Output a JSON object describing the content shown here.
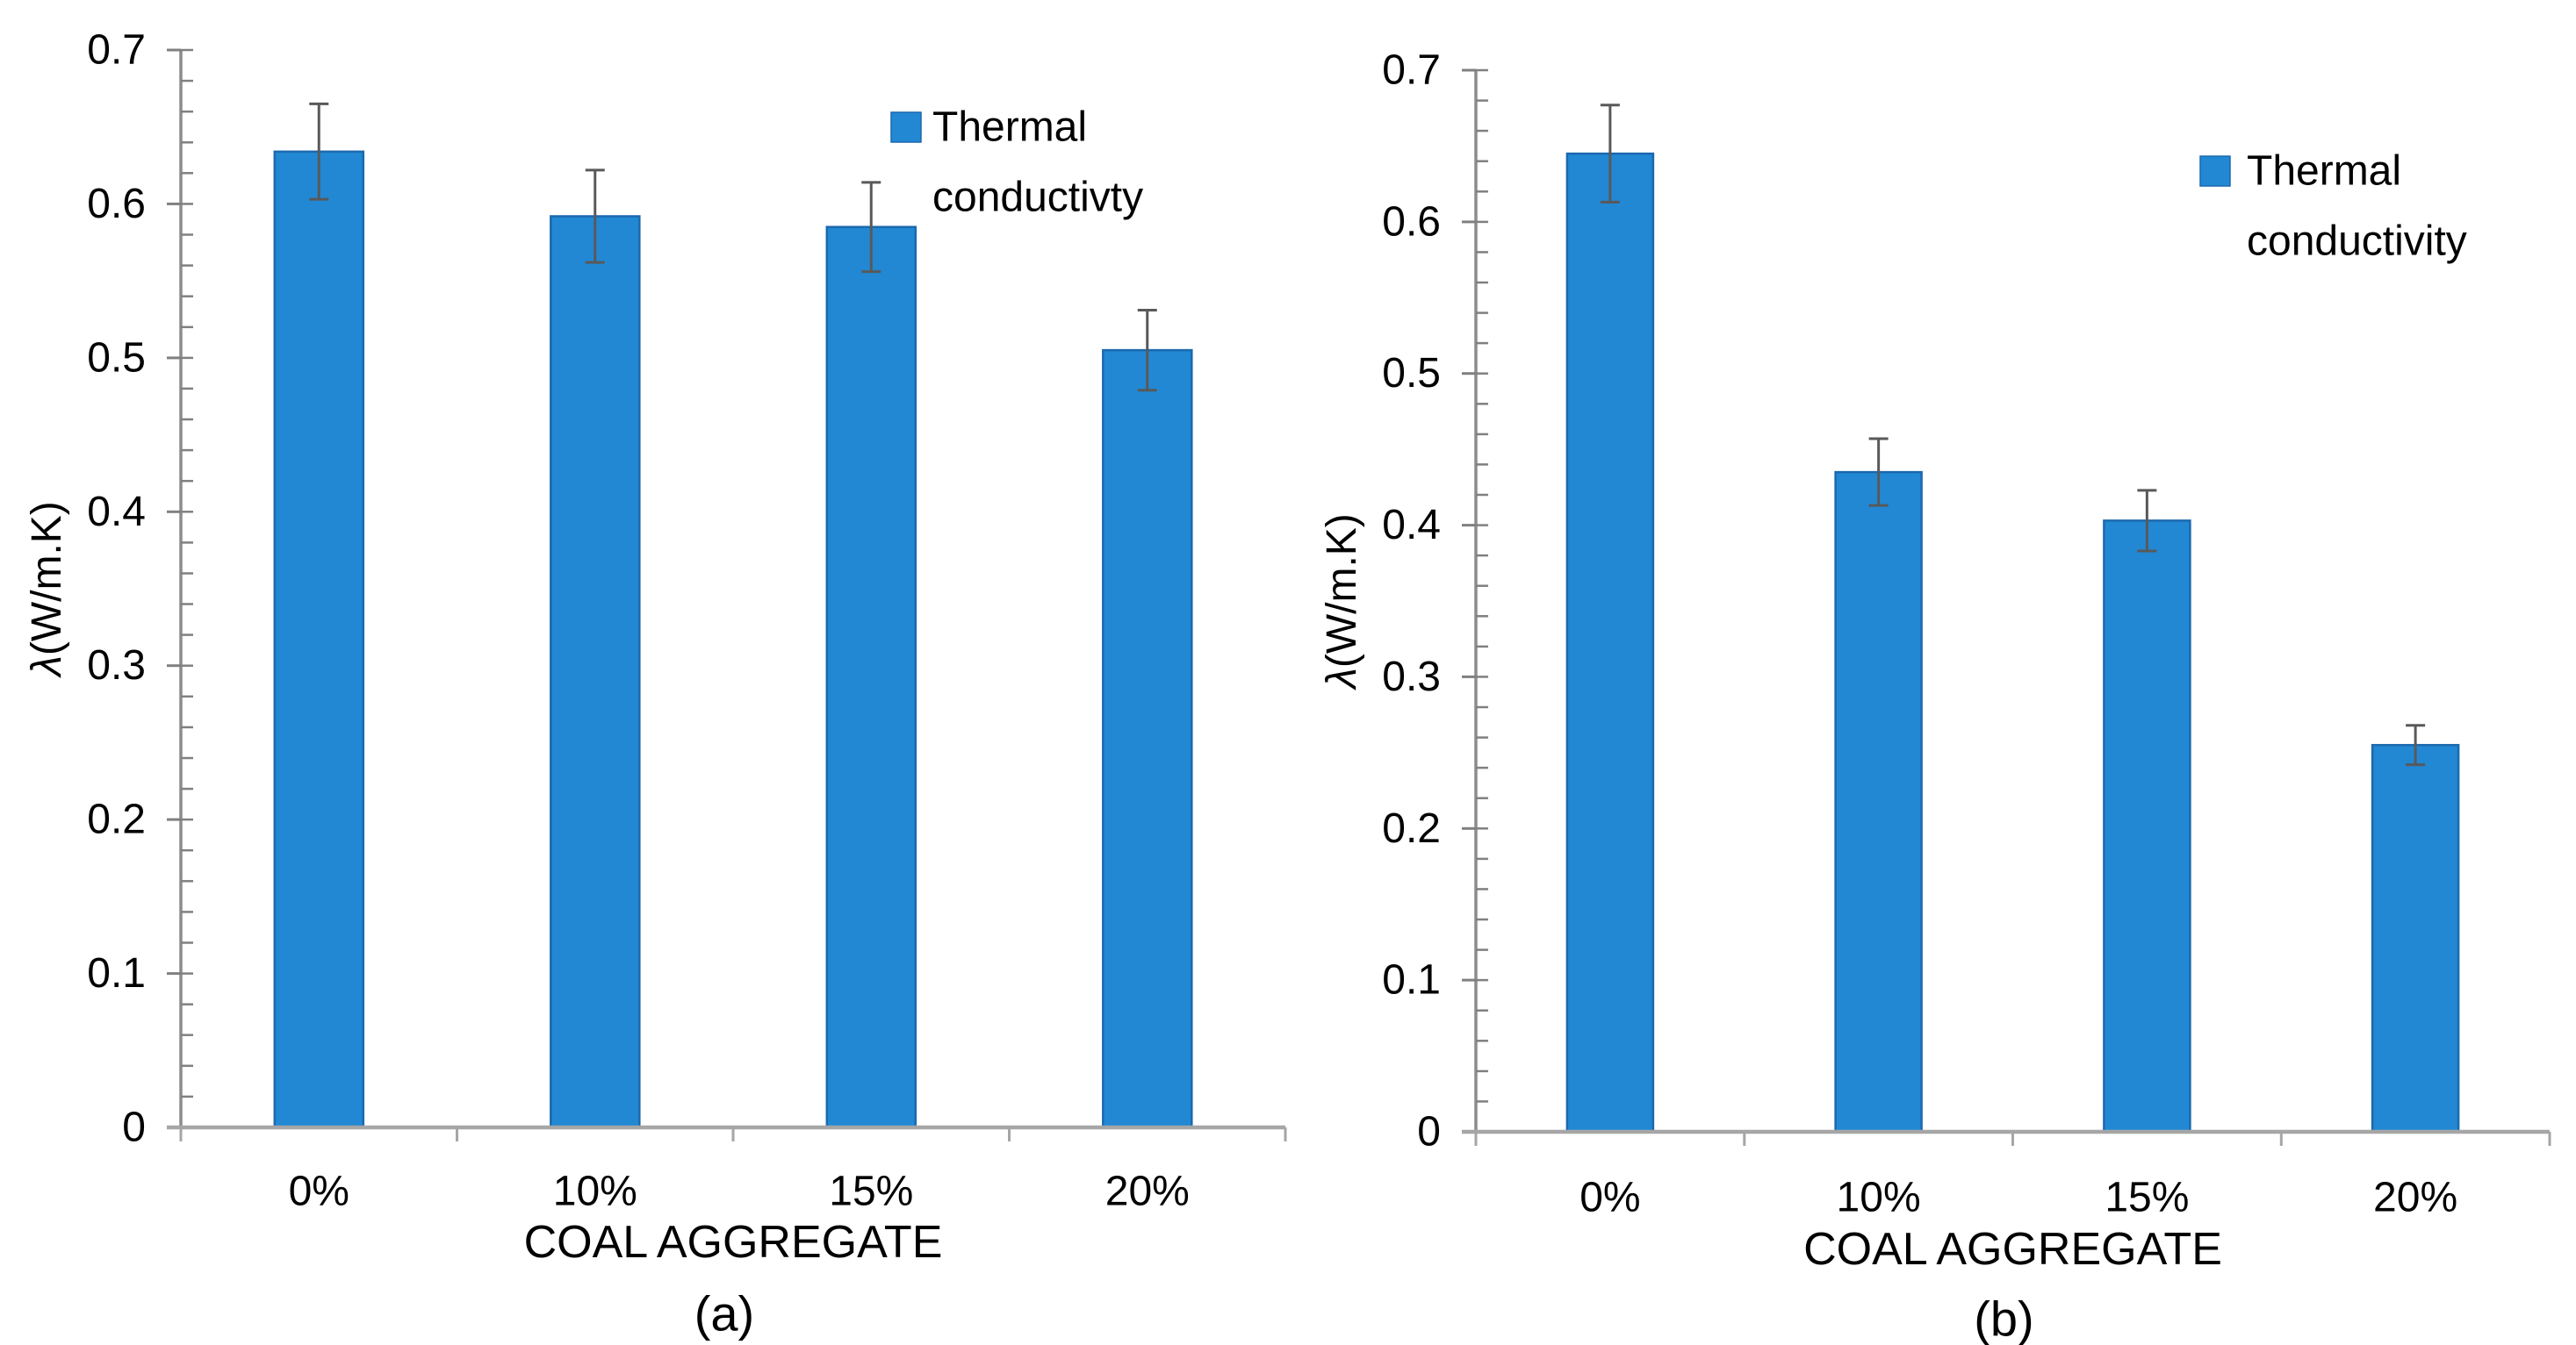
{
  "figure": {
    "background": "#ffffff",
    "bar_color": "#2288d4",
    "bar_border_color": "#1b69ae",
    "x_axis_line_color": "#a6a6a6",
    "y_axis_line_color": "#8c8c8c",
    "tick_color": "#808080",
    "error_bar_color": "#595959",
    "text_color": "#000000",
    "legend_swatch_color": "#2288d4"
  },
  "chart_data": [
    {
      "id": "a",
      "type": "bar",
      "caption": "(a)",
      "xlabel": "COAL AGGREGATE",
      "ylabel": "λ(W/m.K)",
      "categories": [
        "0%",
        "10%",
        "15%",
        "20%"
      ],
      "values": [
        0.634,
        0.592,
        0.585,
        0.505
      ],
      "error_bars": [
        0.031,
        0.03,
        0.029,
        0.026
      ],
      "legend_label": "Thermal conductivty",
      "legend_lines": [
        "Thermal",
        "conductivty"
      ],
      "legend_position": "upper-right",
      "ylim": [
        0,
        0.7
      ],
      "ytick_interval": 0.1,
      "minor_tick_interval": 0.02,
      "ytick_labels": [
        "0.7",
        "0.6",
        "0.5",
        "0.4",
        "0.3",
        "0.2",
        "0.1",
        "0"
      ],
      "grid": false
    },
    {
      "id": "b",
      "type": "bar",
      "caption": "(b)",
      "xlabel": "COAL AGGREGATE",
      "ylabel": "λ(W/m.K)",
      "categories": [
        "0%",
        "10%",
        "15%",
        "20%"
      ],
      "values": [
        0.645,
        0.435,
        0.403,
        0.255
      ],
      "error_bars": [
        0.032,
        0.022,
        0.02,
        0.013
      ],
      "legend_label": "Thermal conductivity",
      "legend_lines": [
        "Thermal",
        "conductivity"
      ],
      "legend_position": "upper-right",
      "ylim": [
        0,
        0.7
      ],
      "ytick_interval": 0.1,
      "minor_tick_interval": 0.02,
      "ytick_labels": [
        "0.7",
        "0.6",
        "0.5",
        "0.4",
        "0.3",
        "0.2",
        "0.1",
        "0"
      ],
      "grid": false
    }
  ]
}
